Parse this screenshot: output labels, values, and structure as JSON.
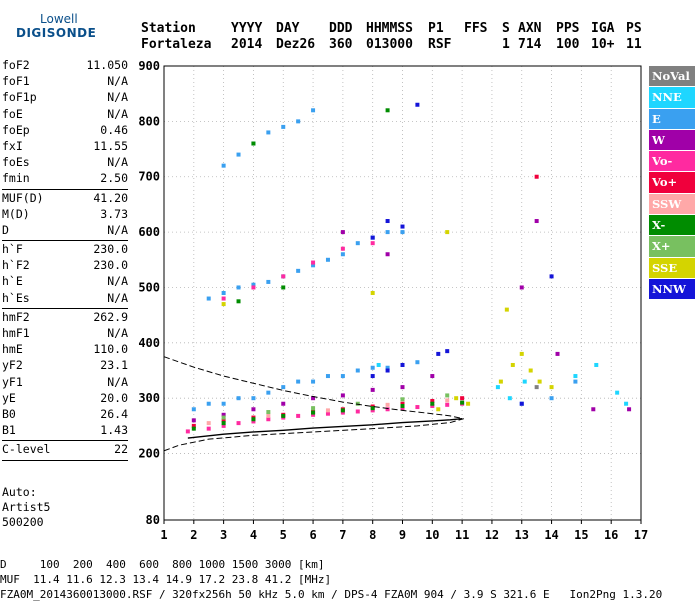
{
  "logo": {
    "line1": "Lowell",
    "line2": "DIGISONDE"
  },
  "header": {
    "labels": [
      "Station",
      "YYYY",
      "DAY",
      "DDD",
      "HHMMSS",
      "P1",
      "FFS",
      "S",
      "AXN",
      "PPS",
      "IGA",
      "PS"
    ],
    "values": [
      "Fortaleza",
      "2014",
      "Dez26",
      "360",
      "013000",
      "RSF",
      "1",
      "714",
      "100",
      "10+",
      "11"
    ]
  },
  "params": [
    {
      "group": [
        {
          "k": "foF2",
          "v": "11.050"
        },
        {
          "k": "foF1",
          "v": "N/A"
        },
        {
          "k": "foF1p",
          "v": "N/A"
        },
        {
          "k": "foE",
          "v": "N/A"
        },
        {
          "k": "foEp",
          "v": "0.46"
        },
        {
          "k": "fxI",
          "v": "11.55"
        },
        {
          "k": "foEs",
          "v": "N/A"
        },
        {
          "k": "fmin",
          "v": "2.50"
        }
      ]
    },
    {
      "group": [
        {
          "k": "MUF(D)",
          "v": "41.20"
        },
        {
          "k": "M(D)",
          "v": "3.73"
        },
        {
          "k": "D",
          "v": "N/A"
        }
      ]
    },
    {
      "group": [
        {
          "k": "h`F",
          "v": "230.0"
        },
        {
          "k": "h`F2",
          "v": "230.0"
        },
        {
          "k": "h`E",
          "v": "N/A"
        },
        {
          "k": "h`Es",
          "v": "N/A"
        }
      ]
    },
    {
      "group": [
        {
          "k": "hmF2",
          "v": "262.9"
        },
        {
          "k": "hmF1",
          "v": "N/A"
        },
        {
          "k": "hmE",
          "v": "110.0"
        },
        {
          "k": "yF2",
          "v": "23.1"
        },
        {
          "k": "yF1",
          "v": "N/A"
        },
        {
          "k": "yE",
          "v": "20.0"
        },
        {
          "k": "B0",
          "v": "26.4"
        },
        {
          "k": "B1",
          "v": "1.43"
        }
      ]
    },
    {
      "group": [
        {
          "k": "C-level",
          "v": "22"
        }
      ]
    }
  ],
  "auto": {
    "line1": "Auto:",
    "line2": "Artist5",
    "line3": "500200"
  },
  "legend": [
    {
      "label": "NoVal",
      "color": "#808080"
    },
    {
      "label": "NNE",
      "color": "#1ed6ff"
    },
    {
      "label": "E",
      "color": "#3aa0f0"
    },
    {
      "label": "W",
      "color": "#a000a8"
    },
    {
      "label": "Vo-",
      "color": "#ff2aa0"
    },
    {
      "label": "Vo+",
      "color": "#f0003c"
    },
    {
      "label": "SSW",
      "color": "#ffa8a8"
    },
    {
      "label": "X-",
      "color": "#008c00"
    },
    {
      "label": "X+",
      "color": "#78c060"
    },
    {
      "label": "SSE",
      "color": "#d4d400"
    },
    {
      "label": "NNW",
      "color": "#1414d8"
    }
  ],
  "footer": {
    "line1": "D     100  200  400  600  800 1000 1500 3000 [km]",
    "line2": "MUF  11.4 11.6 12.3 13.4 14.9 17.2 23.8 41.2 [MHz]",
    "line3": "FZA0M_2014360013000.RSF / 320fx256h 50 kHz 5.0 km / DPS-4 FZA0M 904 / 3.9 S 321.6 E   Ion2Png 1.3.20"
  },
  "chart_data": {
    "type": "scatter",
    "title": "",
    "xlabel": "",
    "ylabel": "",
    "xlim": [
      1,
      17
    ],
    "ylim": [
      80,
      900
    ],
    "x_ticks": [
      1,
      2,
      3,
      4,
      5,
      6,
      7,
      8,
      9,
      10,
      11,
      12,
      13,
      14,
      15,
      16,
      17
    ],
    "y_ticks": [
      80,
      200,
      300,
      400,
      500,
      600,
      700,
      800,
      900
    ],
    "grid": true,
    "series": [
      {
        "name": "NNE",
        "points": [
          [
            12.2,
            320
          ],
          [
            12.6,
            300
          ],
          [
            13.1,
            330
          ],
          [
            14.8,
            340
          ],
          [
            15.5,
            360
          ],
          [
            16.2,
            310
          ],
          [
            16.5,
            290
          ],
          [
            8.2,
            360
          ]
        ]
      },
      {
        "name": "E",
        "points": [
          [
            2.0,
            280
          ],
          [
            2.5,
            290
          ],
          [
            3.0,
            290
          ],
          [
            3.5,
            300
          ],
          [
            4.0,
            300
          ],
          [
            4.5,
            310
          ],
          [
            5.0,
            320
          ],
          [
            5.5,
            330
          ],
          [
            6.0,
            330
          ],
          [
            6.5,
            340
          ],
          [
            7.0,
            340
          ],
          [
            7.5,
            350
          ],
          [
            8.0,
            355
          ],
          [
            8.5,
            355
          ],
          [
            9.0,
            360
          ],
          [
            9.5,
            365
          ],
          [
            2.5,
            480
          ],
          [
            3.0,
            490
          ],
          [
            3.5,
            500
          ],
          [
            4.0,
            505
          ],
          [
            4.5,
            510
          ],
          [
            5.0,
            520
          ],
          [
            5.5,
            530
          ],
          [
            6.0,
            540
          ],
          [
            6.5,
            550
          ],
          [
            7.0,
            560
          ],
          [
            7.5,
            580
          ],
          [
            8.0,
            590
          ],
          [
            8.5,
            600
          ],
          [
            9.0,
            600
          ],
          [
            3.0,
            720
          ],
          [
            3.5,
            740
          ],
          [
            4.0,
            760
          ],
          [
            4.5,
            780
          ],
          [
            5.0,
            790
          ],
          [
            5.5,
            800
          ],
          [
            6.0,
            820
          ],
          [
            13.0,
            290
          ],
          [
            14.0,
            300
          ],
          [
            14.8,
            330
          ]
        ]
      },
      {
        "name": "W",
        "points": [
          [
            2.0,
            260
          ],
          [
            3.0,
            270
          ],
          [
            4.0,
            280
          ],
          [
            5.0,
            290
          ],
          [
            6.0,
            300
          ],
          [
            7.0,
            305
          ],
          [
            8.0,
            315
          ],
          [
            9.0,
            320
          ],
          [
            10.0,
            340
          ],
          [
            13.0,
            500
          ],
          [
            13.5,
            620
          ],
          [
            14.2,
            380
          ],
          [
            15.4,
            280
          ],
          [
            16.6,
            280
          ],
          [
            7.0,
            600
          ],
          [
            8.5,
            560
          ]
        ]
      },
      {
        "name": "Vo-",
        "points": [
          [
            1.8,
            240
          ],
          [
            2.5,
            245
          ],
          [
            3.0,
            250
          ],
          [
            3.5,
            255
          ],
          [
            4.0,
            258
          ],
          [
            4.5,
            262
          ],
          [
            5.0,
            265
          ],
          [
            5.5,
            268
          ],
          [
            6.0,
            270
          ],
          [
            6.5,
            272
          ],
          [
            7.0,
            274
          ],
          [
            7.5,
            276
          ],
          [
            8.0,
            278
          ],
          [
            8.5,
            280
          ],
          [
            9.0,
            282
          ],
          [
            9.5,
            284
          ],
          [
            10.0,
            286
          ],
          [
            10.5,
            288
          ],
          [
            11.0,
            290
          ],
          [
            3.0,
            480
          ],
          [
            4.0,
            500
          ],
          [
            5.0,
            520
          ],
          [
            6.0,
            545
          ],
          [
            7.0,
            570
          ],
          [
            8.0,
            580
          ]
        ]
      },
      {
        "name": "Vo+",
        "points": [
          [
            2.0,
            250
          ],
          [
            3.0,
            260
          ],
          [
            4.0,
            265
          ],
          [
            5.0,
            270
          ],
          [
            6.0,
            275
          ],
          [
            7.0,
            280
          ],
          [
            8.0,
            285
          ],
          [
            9.0,
            290
          ],
          [
            10.0,
            295
          ],
          [
            11.0,
            300
          ],
          [
            13.5,
            700
          ]
        ]
      },
      {
        "name": "SSW",
        "points": [
          [
            2.5,
            255
          ],
          [
            4.5,
            268
          ],
          [
            6.5,
            278
          ],
          [
            8.5,
            288
          ],
          [
            10.5,
            296
          ]
        ]
      },
      {
        "name": "X-",
        "points": [
          [
            2.0,
            245
          ],
          [
            3.0,
            255
          ],
          [
            4.0,
            262
          ],
          [
            5.0,
            268
          ],
          [
            6.0,
            274
          ],
          [
            7.0,
            278
          ],
          [
            8.0,
            282
          ],
          [
            9.0,
            286
          ],
          [
            10.0,
            290
          ],
          [
            11.0,
            292
          ],
          [
            3.5,
            475
          ],
          [
            5.0,
            500
          ],
          [
            4.0,
            760
          ],
          [
            8.5,
            820
          ]
        ]
      },
      {
        "name": "X+",
        "points": [
          [
            3.0,
            265
          ],
          [
            4.5,
            275
          ],
          [
            6.0,
            282
          ],
          [
            7.5,
            290
          ],
          [
            9.0,
            298
          ],
          [
            10.5,
            305
          ]
        ]
      },
      {
        "name": "SSE",
        "points": [
          [
            12.3,
            330
          ],
          [
            12.7,
            360
          ],
          [
            13.0,
            380
          ],
          [
            13.3,
            350
          ],
          [
            13.6,
            330
          ],
          [
            14.0,
            320
          ],
          [
            10.2,
            280
          ],
          [
            11.2,
            290
          ],
          [
            10.8,
            300
          ],
          [
            3.0,
            470
          ],
          [
            8.0,
            490
          ],
          [
            10.5,
            600
          ],
          [
            12.5,
            460
          ]
        ]
      },
      {
        "name": "NNW",
        "points": [
          [
            8.0,
            340
          ],
          [
            8.5,
            350
          ],
          [
            9.0,
            360
          ],
          [
            10.2,
            380
          ],
          [
            10.5,
            385
          ],
          [
            8.0,
            590
          ],
          [
            8.5,
            620
          ],
          [
            9.0,
            610
          ],
          [
            13.0,
            290
          ],
          [
            14.0,
            520
          ],
          [
            9.5,
            830
          ]
        ]
      },
      {
        "name": "NoVal",
        "points": [
          [
            13.5,
            320
          ]
        ]
      }
    ],
    "trace": {
      "name": "virtual height trace",
      "points": [
        [
          1.8,
          228
        ],
        [
          2.5,
          232
        ],
        [
          3.0,
          235
        ],
        [
          4.0,
          239
        ],
        [
          5.0,
          242
        ],
        [
          6.0,
          246
        ],
        [
          7.0,
          249
        ],
        [
          8.0,
          252
        ],
        [
          9.0,
          256
        ],
        [
          10.0,
          259
        ],
        [
          10.6,
          261
        ],
        [
          11.0,
          263
        ]
      ]
    },
    "profile": {
      "name": "electron density profile",
      "points": [
        [
          1.0,
          375
        ],
        [
          2.0,
          356
        ],
        [
          3.0,
          340
        ],
        [
          4.0,
          327
        ],
        [
          5.0,
          314
        ],
        [
          6.0,
          303
        ],
        [
          7.0,
          293
        ],
        [
          8.0,
          285
        ],
        [
          9.0,
          278
        ],
        [
          10.0,
          272
        ],
        [
          10.6,
          268
        ],
        [
          11.05,
          262.9
        ],
        [
          10.6,
          256
        ],
        [
          9.5,
          250
        ],
        [
          8.0,
          245
        ],
        [
          6.0,
          239
        ],
        [
          4.0,
          233
        ],
        [
          2.5,
          226
        ],
        [
          1.5,
          215
        ],
        [
          1.0,
          205
        ]
      ]
    }
  }
}
